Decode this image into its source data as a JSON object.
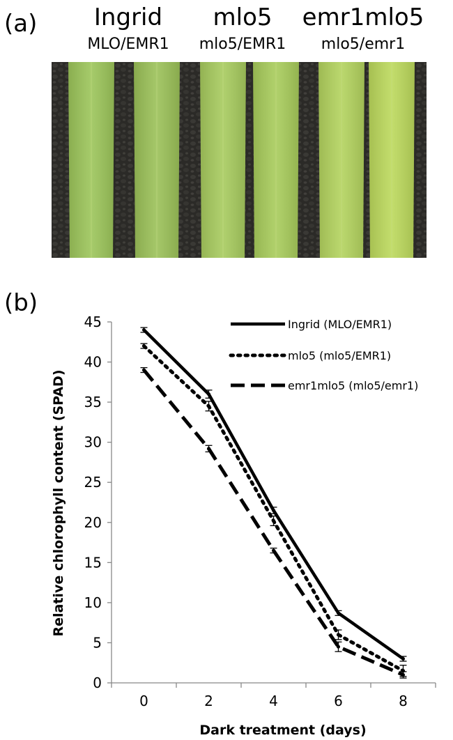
{
  "panel_a": {
    "label": "(a)",
    "columns": [
      {
        "name": "Ingrid",
        "genotype": "MLO/EMR1"
      },
      {
        "name": "mlo5",
        "genotype": "mlo5/EMR1"
      },
      {
        "name": "emr1mlo5",
        "genotype": "mlo5/emr1"
      }
    ],
    "photo": {
      "background_color": "#2b2a27",
      "leaf_colors": [
        "#9cc55a",
        "#9bc158",
        "#a7cb5e",
        "#a8cc5b",
        "#b3d35e",
        "#bcd95c"
      ]
    }
  },
  "panel_b": {
    "label": "(b)"
  },
  "chart_data": {
    "type": "line",
    "x": [
      0,
      2,
      4,
      6,
      8
    ],
    "xlabel": "Dark treatment (days)",
    "ylabel": "Relative chlorophyll content (SPAD)",
    "xlim": [
      -1,
      9
    ],
    "ylim": [
      0,
      45
    ],
    "xticks": [
      0,
      2,
      4,
      6,
      8
    ],
    "yticks": [
      0,
      5,
      10,
      15,
      20,
      25,
      30,
      35,
      40,
      45
    ],
    "grid": false,
    "legend_position": "top-right",
    "series": [
      {
        "name": "Ingrid (MLO/EMR1)",
        "values": [
          44.0,
          36.0,
          21.5,
          8.7,
          3.0
        ],
        "errors": [
          0.3,
          0.5,
          0.4,
          0.3,
          0.3
        ],
        "style": "solid",
        "color": "#000000"
      },
      {
        "name": "mlo5 (mlo5/EMR1)",
        "values": [
          42.0,
          34.5,
          20.2,
          6.0,
          1.5
        ],
        "errors": [
          0.3,
          0.6,
          0.6,
          0.6,
          0.7
        ],
        "style": "dotted",
        "color": "#000000"
      },
      {
        "name": "emr1mlo5 (mlo5/emr1)",
        "values": [
          39.0,
          29.2,
          16.5,
          4.5,
          1.0
        ],
        "errors": [
          0.3,
          0.4,
          0.3,
          0.6,
          0.4
        ],
        "style": "dashed",
        "color": "#000000"
      }
    ]
  }
}
